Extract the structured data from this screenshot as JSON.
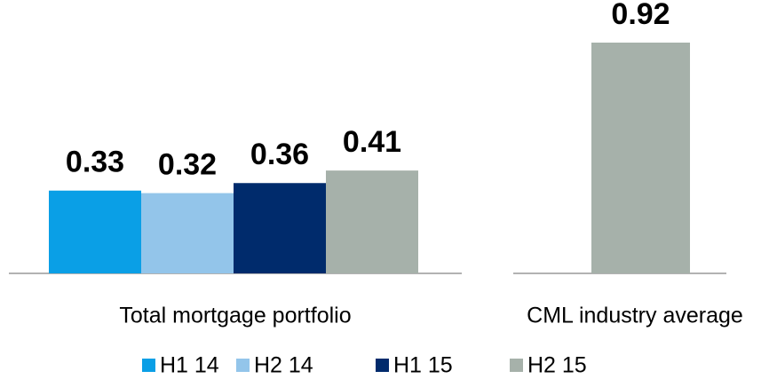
{
  "chart_data": {
    "type": "bar",
    "categories": [
      "Total mortgage portfolio",
      "CML industry average"
    ],
    "series": [
      {
        "name": "H1 14",
        "color": "#0a9fe6",
        "values": [
          0.33,
          null
        ]
      },
      {
        "name": "H2 14",
        "color": "#93c5ea",
        "values": [
          0.32,
          null
        ]
      },
      {
        "name": "H1 15",
        "color": "#002b6c",
        "values": [
          0.36,
          null
        ]
      },
      {
        "name": "H2 15",
        "color": "#a6b1aa",
        "values": [
          0.41,
          0.92
        ]
      }
    ],
    "legend": "bottom"
  }
}
